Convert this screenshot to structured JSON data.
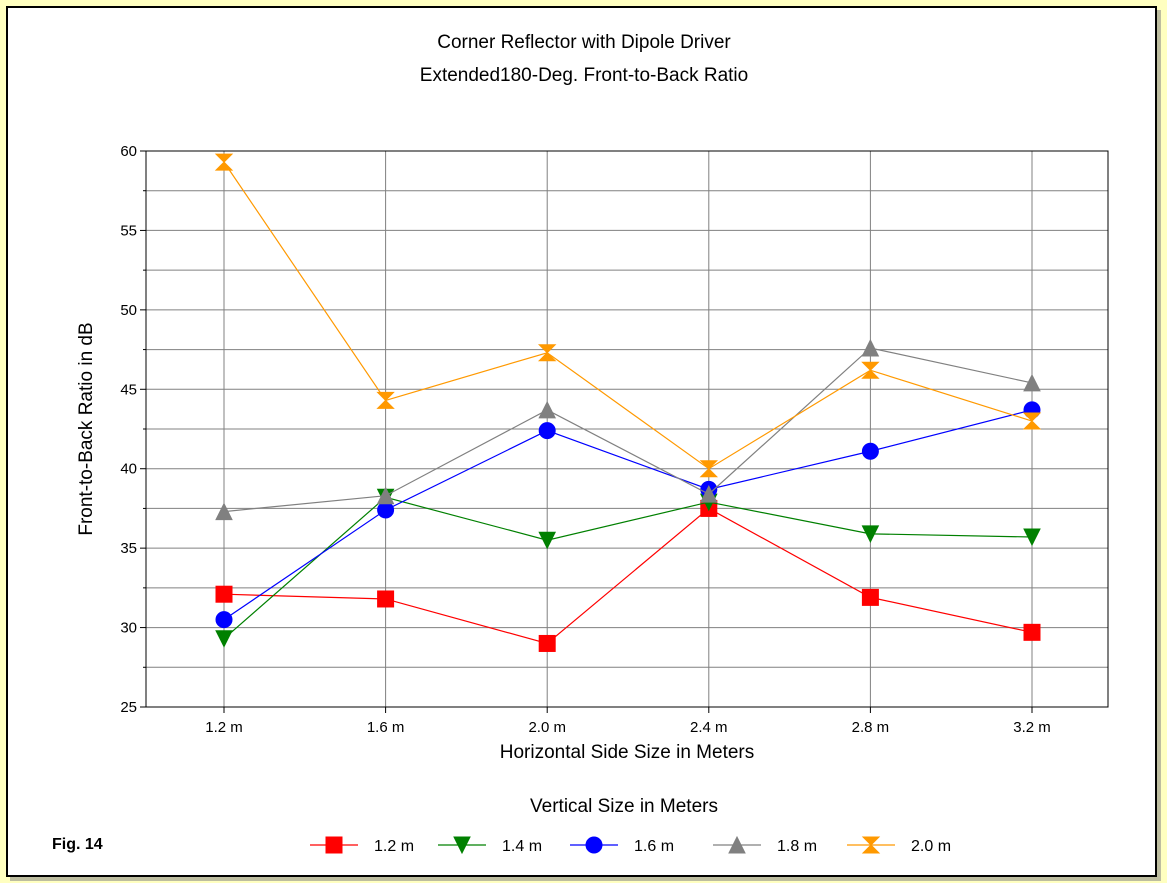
{
  "figure_label": "Fig. 14",
  "chart_data": {
    "type": "line",
    "title": "Corner Reflector with Dipole Driver",
    "subtitle": "Extended180-Deg. Front-to-Back Ratio",
    "xlabel": "Horizontal Side Size in Meters",
    "ylabel": "Front-to-Back Ratio in dB",
    "categories": [
      "1.2 m",
      "1.6 m",
      "2.0 m",
      "2.4 m",
      "2.8 m",
      "3.2 m"
    ],
    "ylim": [
      25,
      60
    ],
    "yticks": [
      25,
      30,
      35,
      40,
      45,
      50,
      55,
      60
    ],
    "grid": true,
    "legend_title": "Vertical Size in Meters",
    "legend_position": "bottom",
    "series": [
      {
        "name": "1.2 m",
        "color": "#FF0000",
        "marker": "square",
        "values": [
          32.1,
          31.8,
          29.0,
          37.5,
          31.9,
          29.7
        ]
      },
      {
        "name": "1.4 m",
        "color": "#008000",
        "marker": "triangle-down",
        "values": [
          29.3,
          38.2,
          35.5,
          37.9,
          35.9,
          35.7
        ]
      },
      {
        "name": "1.6 m",
        "color": "#0000FF",
        "marker": "circle",
        "values": [
          30.5,
          37.4,
          42.4,
          38.7,
          41.1,
          43.7
        ]
      },
      {
        "name": "1.8 m",
        "color": "#808080",
        "marker": "triangle-up",
        "values": [
          37.3,
          38.3,
          43.7,
          38.4,
          47.6,
          45.4
        ]
      },
      {
        "name": "2.0 m",
        "color": "#FF9900",
        "marker": "hourglass",
        "values": [
          59.3,
          44.3,
          47.3,
          40.0,
          46.2,
          43.0
        ]
      }
    ]
  }
}
